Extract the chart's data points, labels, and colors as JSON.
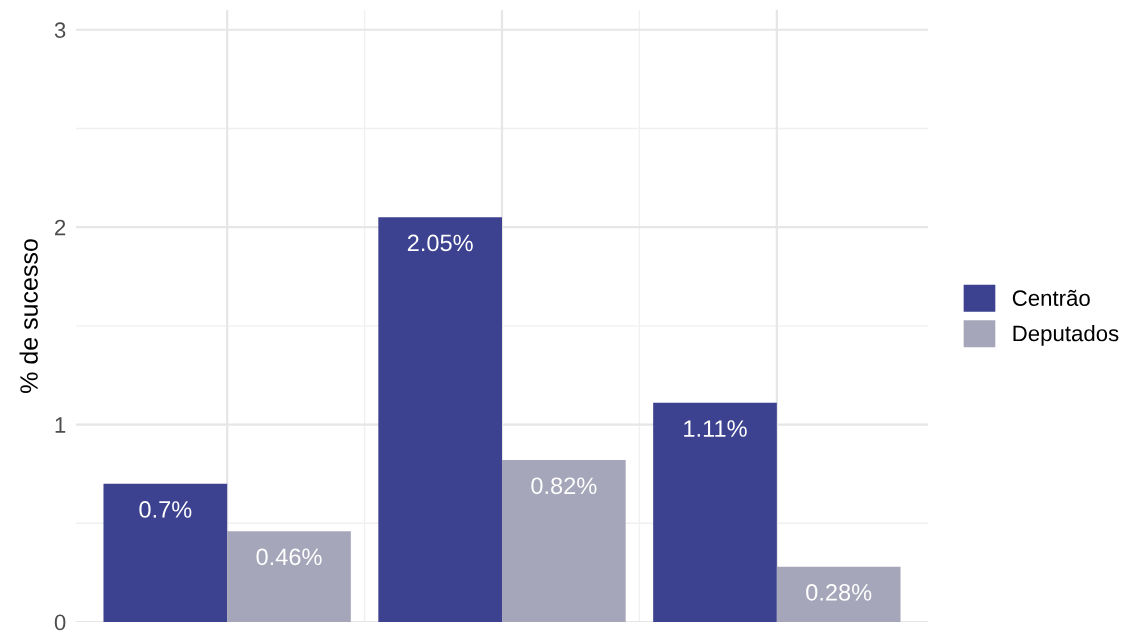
{
  "chart_data": {
    "type": "bar",
    "ylabel": "% de sucesso",
    "categories": [
      null,
      null,
      null
    ],
    "series": [
      {
        "name": "Centrão",
        "color": "#3c4190",
        "values": [
          0.7,
          2.05,
          1.11
        ],
        "value_labels": [
          "0.7%",
          "2.05%",
          "1.11%"
        ]
      },
      {
        "name": "Deputados",
        "color": "#a6a6ba",
        "values": [
          0.46,
          0.82,
          0.28
        ],
        "value_labels": [
          "0.46%",
          "0.82%",
          "0.28%"
        ]
      }
    ],
    "ylim": [
      0,
      3.1
    ],
    "yticks": [
      0,
      1,
      2,
      3
    ],
    "grid": true,
    "legend": "right"
  }
}
